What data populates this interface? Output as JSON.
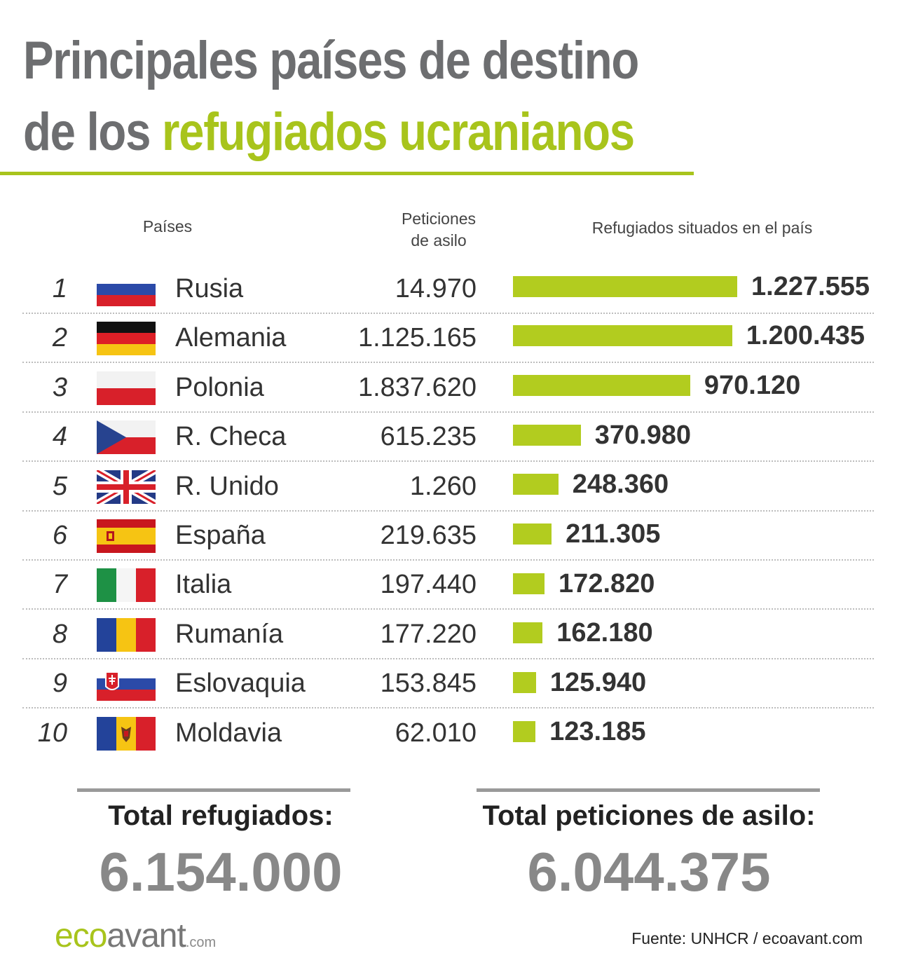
{
  "title": {
    "line1": "Principales países de destino",
    "line2_prefix": "de los ",
    "line2_accent": "refugiados ucranianos"
  },
  "columns": {
    "countries": "Países",
    "asylum_line1": "Peticiones",
    "asylum_line2": "de asilo",
    "refugees": "Refugiados situados en el país"
  },
  "colors": {
    "accent": "#a8c41c",
    "bar": "#b2cc1f",
    "title_gray": "#6d6e70"
  },
  "chart_data": {
    "type": "bar",
    "orientation": "horizontal",
    "categories": [
      "Rusia",
      "Alemania",
      "Polonia",
      "R. Checa",
      "R. Unido",
      "España",
      "Italia",
      "Rumanía",
      "Eslovaquia",
      "Moldavia"
    ],
    "ranks": [
      "1",
      "2",
      "3",
      "4",
      "5",
      "6",
      "7",
      "8",
      "9",
      "10"
    ],
    "flags": [
      "russia-flag",
      "germany-flag",
      "poland-flag",
      "czech-flag",
      "uk-flag",
      "spain-flag",
      "italy-flag",
      "romania-flag",
      "slovakia-flag",
      "moldova-flag"
    ],
    "asylum_labels": [
      "14.970",
      "1.125.165",
      "1.837.620",
      "615.235",
      "1.260",
      "219.635",
      "197.440",
      "177.220",
      "153.845",
      "62.010"
    ],
    "values": [
      1227555,
      1200435,
      970120,
      370980,
      248360,
      211305,
      172820,
      162180,
      125940,
      123185
    ],
    "value_labels": [
      "1.227.555",
      "1.200.435",
      "970.120",
      "370.980",
      "248.360",
      "211.305",
      "172.820",
      "162.180",
      "125.940",
      "123.185"
    ],
    "xlim": [
      0,
      1227555
    ]
  },
  "totals": {
    "refugees_label": "Total refugiados:",
    "refugees_value": "6.154.000",
    "asylum_label": "Total peticiones de asilo:",
    "asylum_value": "6.044.375"
  },
  "footer": {
    "logo_part1": "eco",
    "logo_part2": "avant",
    "logo_part3": ".com",
    "source_label": "Fuente:",
    "source_text": " UNHCR / ecoavant.com"
  }
}
